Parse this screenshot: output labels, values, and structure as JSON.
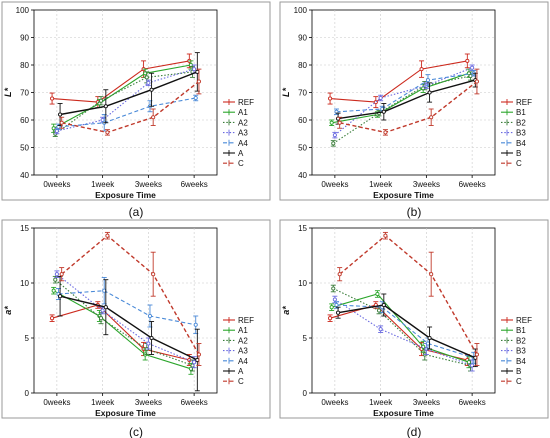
{
  "chart_data": [
    {
      "panel": "a",
      "type": "line",
      "title": "",
      "caption": "(a)",
      "xlabel": "Exposure Time",
      "ylabel": "L*",
      "categories": [
        "0weeks",
        "1week",
        "3weeks",
        "6weeks"
      ],
      "ylim": [
        40,
        100
      ],
      "yticks": [
        40,
        50,
        60,
        70,
        80,
        90,
        100
      ],
      "grid": true,
      "legend_position": "right",
      "series": [
        {
          "name": "REF",
          "color": "#cc2a1e",
          "dash": "solid",
          "values": [
            67.8,
            66.5,
            78.5,
            81.5
          ],
          "errors": [
            2.0,
            2.0,
            3.0,
            2.5
          ]
        },
        {
          "name": "A1",
          "color": "#2aa52a",
          "dash": "solid",
          "values": [
            57.0,
            66.0,
            77.0,
            80.0
          ],
          "errors": [
            1.5,
            1.5,
            1.5,
            1.5
          ]
        },
        {
          "name": "A2",
          "color": "#3a7d3a",
          "dash": "dot",
          "values": [
            55.0,
            67.0,
            75.5,
            77.5
          ],
          "errors": [
            1.0,
            1.5,
            2.0,
            2.0
          ]
        },
        {
          "name": "A3",
          "color": "#6a6ae0",
          "dash": "dot",
          "values": [
            56.0,
            60.0,
            73.5,
            78.5
          ],
          "errors": [
            1.0,
            1.0,
            1.0,
            1.5
          ]
        },
        {
          "name": "A4",
          "color": "#4a8ad8",
          "dash": "dash",
          "values": [
            57.5,
            59.0,
            65.0,
            68.0
          ],
          "errors": [
            1.0,
            3.0,
            2.0,
            1.0
          ]
        },
        {
          "name": "A",
          "color": "#111111",
          "dash": "solid",
          "values": [
            62.0,
            65.0,
            71.0,
            77.5
          ],
          "errors": [
            4.0,
            6.0,
            6.0,
            7.0
          ]
        },
        {
          "name": "C",
          "color": "#c0392b",
          "dash": "dash",
          "values": [
            59.0,
            55.5,
            61.0,
            74.0
          ],
          "errors": [
            2.0,
            1.0,
            3.0,
            4.5
          ]
        }
      ]
    },
    {
      "panel": "b",
      "type": "line",
      "title": "",
      "caption": "(b)",
      "xlabel": "Exposure Time",
      "ylabel": "L*",
      "categories": [
        "0weeks",
        "1week",
        "3weeks",
        "6weeks"
      ],
      "ylim": [
        40,
        100
      ],
      "yticks": [
        40,
        50,
        60,
        70,
        80,
        90,
        100
      ],
      "grid": true,
      "legend_position": "right",
      "series": [
        {
          "name": "REF",
          "color": "#cc2a1e",
          "dash": "solid",
          "values": [
            67.8,
            66.5,
            78.5,
            81.5
          ],
          "errors": [
            2.0,
            2.0,
            3.0,
            2.5
          ]
        },
        {
          "name": "B1",
          "color": "#2aa52a",
          "dash": "solid",
          "values": [
            59.0,
            62.0,
            71.5,
            77.0
          ],
          "errors": [
            1.0,
            1.0,
            1.5,
            1.5
          ]
        },
        {
          "name": "B2",
          "color": "#3a7d3a",
          "dash": "dot",
          "values": [
            51.5,
            62.5,
            72.5,
            76.0
          ],
          "errors": [
            1.0,
            1.0,
            1.5,
            1.5
          ]
        },
        {
          "name": "B3",
          "color": "#6a6ae0",
          "dash": "dot",
          "values": [
            54.5,
            68.0,
            72.5,
            79.0
          ],
          "errors": [
            1.0,
            1.0,
            1.0,
            1.0
          ]
        },
        {
          "name": "B4",
          "color": "#4a8ad8",
          "dash": "dash",
          "values": [
            63.0,
            64.0,
            74.5,
            77.0
          ],
          "errors": [
            1.0,
            1.0,
            2.0,
            1.0
          ]
        },
        {
          "name": "B",
          "color": "#111111",
          "dash": "solid",
          "values": [
            60.5,
            63.0,
            70.0,
            74.5
          ],
          "errors": [
            2.0,
            3.0,
            3.5,
            2.5
          ]
        },
        {
          "name": "C",
          "color": "#c0392b",
          "dash": "dash",
          "values": [
            59.0,
            55.5,
            61.0,
            74.0
          ],
          "errors": [
            2.0,
            1.0,
            3.0,
            4.5
          ]
        }
      ]
    },
    {
      "panel": "c",
      "type": "line",
      "title": "",
      "caption": "(c)",
      "xlabel": "Exposure Time",
      "ylabel": "a*",
      "categories": [
        "0weeks",
        "1week",
        "3weeks",
        "6weeks"
      ],
      "ylim": [
        0,
        15
      ],
      "yticks": [
        0,
        5,
        10,
        15
      ],
      "grid": true,
      "legend_position": "right",
      "series": [
        {
          "name": "REF",
          "color": "#cc2a1e",
          "dash": "solid",
          "values": [
            6.8,
            8.0,
            4.0,
            3.0
          ],
          "errors": [
            0.3,
            0.3,
            0.6,
            0.5
          ]
        },
        {
          "name": "A1",
          "color": "#2aa52a",
          "dash": "solid",
          "values": [
            9.3,
            7.0,
            3.5,
            2.2
          ],
          "errors": [
            0.3,
            0.5,
            0.5,
            0.5
          ]
        },
        {
          "name": "A2",
          "color": "#3a7d3a",
          "dash": "dot",
          "values": [
            10.3,
            6.8,
            4.0,
            2.5
          ],
          "errors": [
            0.3,
            0.5,
            0.5,
            0.5
          ]
        },
        {
          "name": "A3",
          "color": "#6a6ae0",
          "dash": "dot",
          "values": [
            10.8,
            7.5,
            4.5,
            2.8
          ],
          "errors": [
            0.3,
            0.3,
            0.5,
            0.5
          ]
        },
        {
          "name": "A4",
          "color": "#4a8ad8",
          "dash": "dash",
          "values": [
            9.0,
            9.3,
            7.0,
            6.2
          ],
          "errors": [
            0.5,
            1.2,
            1.0,
            0.8
          ]
        },
        {
          "name": "A",
          "color": "#111111",
          "dash": "solid",
          "values": [
            8.8,
            7.8,
            5.0,
            3.0
          ],
          "errors": [
            1.8,
            2.5,
            1.5,
            2.8
          ]
        },
        {
          "name": "C",
          "color": "#c0392b",
          "dash": "dash",
          "values": [
            10.8,
            14.3,
            10.8,
            3.5
          ],
          "errors": [
            0.6,
            0.3,
            2.0,
            1.0
          ]
        }
      ]
    },
    {
      "panel": "d",
      "type": "line",
      "title": "",
      "caption": "(d)",
      "xlabel": "Exposure Time",
      "ylabel": "a*",
      "categories": [
        "0weeks",
        "1week",
        "3weeks",
        "6weeks"
      ],
      "ylim": [
        0,
        15
      ],
      "yticks": [
        0,
        5,
        10,
        15
      ],
      "grid": true,
      "legend_position": "right",
      "series": [
        {
          "name": "REF",
          "color": "#cc2a1e",
          "dash": "solid",
          "values": [
            6.8,
            8.0,
            4.0,
            3.0
          ],
          "errors": [
            0.3,
            0.3,
            0.6,
            0.5
          ]
        },
        {
          "name": "B1",
          "color": "#2aa52a",
          "dash": "solid",
          "values": [
            7.8,
            9.0,
            4.2,
            2.8
          ],
          "errors": [
            0.3,
            0.3,
            0.5,
            0.5
          ]
        },
        {
          "name": "B2",
          "color": "#3a7d3a",
          "dash": "dot",
          "values": [
            9.5,
            7.5,
            3.5,
            2.5
          ],
          "errors": [
            0.3,
            0.3,
            0.5,
            0.5
          ]
        },
        {
          "name": "B3",
          "color": "#6a6ae0",
          "dash": "dot",
          "values": [
            8.5,
            5.8,
            4.0,
            2.5
          ],
          "errors": [
            0.3,
            0.3,
            0.5,
            0.5
          ]
        },
        {
          "name": "B4",
          "color": "#4a8ad8",
          "dash": "dash",
          "values": [
            8.0,
            7.8,
            4.5,
            3.2
          ],
          "errors": [
            0.3,
            0.5,
            0.5,
            0.5
          ]
        },
        {
          "name": "B",
          "color": "#111111",
          "dash": "solid",
          "values": [
            7.3,
            8.0,
            5.0,
            3.2
          ],
          "errors": [
            0.5,
            1.0,
            1.0,
            0.8
          ]
        },
        {
          "name": "C",
          "color": "#c0392b",
          "dash": "dash",
          "values": [
            10.8,
            14.3,
            10.8,
            3.5
          ],
          "errors": [
            0.6,
            0.3,
            2.0,
            1.0
          ]
        }
      ]
    }
  ]
}
